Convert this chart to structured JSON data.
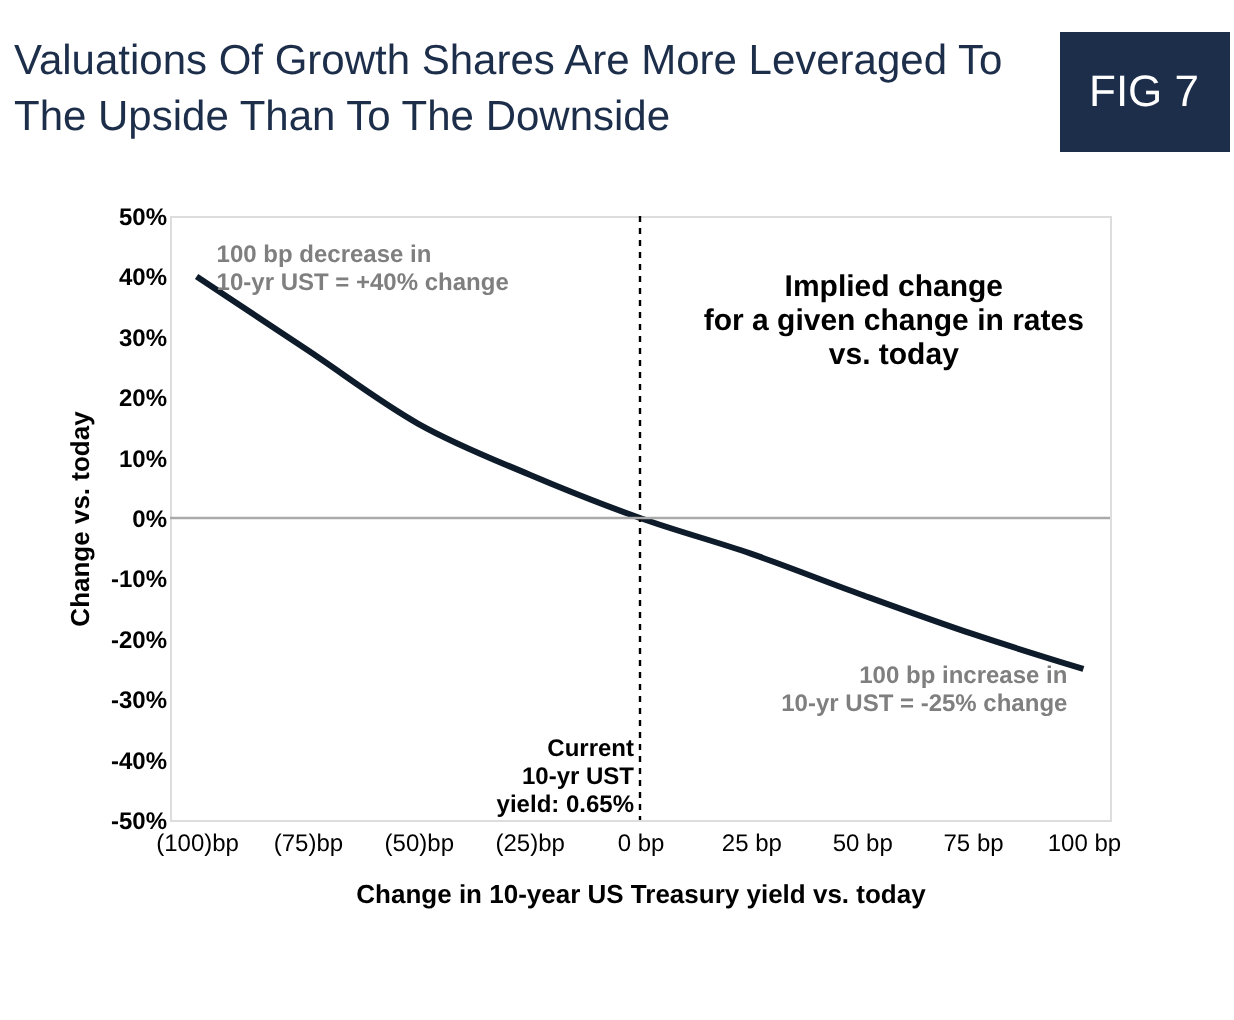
{
  "chart_data": {
    "type": "line",
    "title": "Valuations Of Growth Shares Are More Leveraged To\nThe Upside Than To The Downside",
    "xlabel": "Change in 10-year US Treasury yield vs. today",
    "ylabel": "Change vs. today",
    "x": [
      -100,
      -75,
      -50,
      -25,
      0,
      25,
      50,
      75,
      100
    ],
    "series": [
      {
        "color": "#0d1b2a",
        "values": [
          40,
          27.8,
          15.6,
          7.2,
          0,
          -5.9,
          -12.7,
          -19.2,
          -25
        ]
      }
    ],
    "xlim": [
      -106,
      106
    ],
    "xticks": [
      {
        "value": -100,
        "label": "(100)bp"
      },
      {
        "value": -75,
        "label": "(75)bp"
      },
      {
        "value": -50,
        "label": "(50)bp"
      },
      {
        "value": -25,
        "label": "(25)bp"
      },
      {
        "value": 0,
        "label": "0 bp"
      },
      {
        "value": 25,
        "label": "25 bp"
      },
      {
        "value": 50,
        "label": "50 bp"
      },
      {
        "value": 75,
        "label": "75 bp"
      },
      {
        "value": 100,
        "label": "100 bp"
      }
    ],
    "ylim": [
      -50,
      50
    ],
    "yticks": [
      {
        "value": -50,
        "label": "-50%"
      },
      {
        "value": -40,
        "label": "-40%"
      },
      {
        "value": -30,
        "label": "-30%"
      },
      {
        "value": -20,
        "label": "-20%"
      },
      {
        "value": -10,
        "label": "-10%"
      },
      {
        "value": 0,
        "label": "0%"
      },
      {
        "value": 10,
        "label": "10%"
      },
      {
        "value": 20,
        "label": "20%"
      },
      {
        "value": 30,
        "label": "30%"
      },
      {
        "value": 40,
        "label": "40%"
      },
      {
        "value": 50,
        "label": "50%"
      }
    ],
    "ref_lines": [
      {
        "axis": "x",
        "value": 0,
        "color": "#000000",
        "line_style": "dashed"
      },
      {
        "axis": "y",
        "value": 0,
        "color": "#aaaaaa",
        "line_style": "solid"
      }
    ],
    "annotations": [
      "Implied change\nfor a given change in rates\nvs. today",
      "FIG 7",
      {
        "text": "100 bp decrease in\n10-yr UST = +40% change",
        "x": -100,
        "y": 40
      },
      {
        "text": "100 bp increase in\n10-yr UST = -25% change",
        "x": 100,
        "y": -25
      },
      {
        "text": "Current\n10-yr UST\nyield: 0.65%",
        "x": 0,
        "y": -38
      }
    ],
    "marker": "none",
    "line_style": "solid"
  }
}
